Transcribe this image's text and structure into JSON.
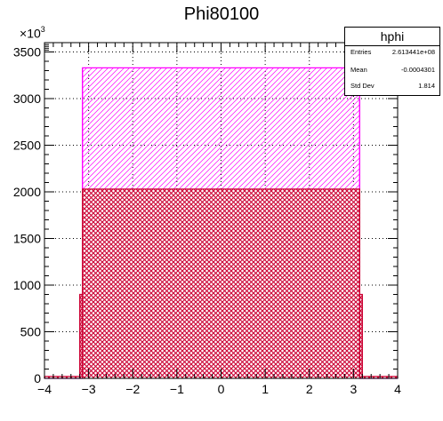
{
  "chart_data": {
    "type": "bar",
    "title": "Phi80100",
    "xlabel": "",
    "ylabel": "",
    "xlim": [
      -4,
      4
    ],
    "ylim": [
      0,
      3600
    ],
    "y_exponent_label": "10",
    "y_exponent_power": "3",
    "x_ticks": [
      -4,
      -3,
      -2,
      -1,
      0,
      1,
      2,
      3,
      4
    ],
    "x_tick_labels": [
      "−4",
      "−3",
      "−2",
      "−1",
      "0",
      "1",
      "2",
      "3",
      "4"
    ],
    "y_ticks": [
      0,
      500,
      1000,
      1500,
      2000,
      2500,
      3000,
      3500
    ],
    "y_tick_labels": [
      "0",
      "500",
      "1000",
      "1500",
      "2000",
      "2500",
      "3000",
      "3500"
    ],
    "grid": true,
    "series": [
      {
        "name": "outer_histogram",
        "color": "#ff00ff",
        "fill": "diagonal-hatch",
        "bins": [
          {
            "x0": -4.0,
            "x1": -3.14,
            "value": 0
          },
          {
            "x0": -3.14,
            "x1": 3.14,
            "value": 3330
          },
          {
            "x0": 3.14,
            "x1": 4.0,
            "value": 0
          }
        ]
      },
      {
        "name": "inner_histogram",
        "color": "#cc0033",
        "fill": "cross-hatch",
        "bins": [
          {
            "x0": -4.0,
            "x1": -3.2,
            "value": 20
          },
          {
            "x0": -3.2,
            "x1": -3.14,
            "value": 900
          },
          {
            "x0": -3.14,
            "x1": 3.14,
            "value": 2030
          },
          {
            "x0": 3.14,
            "x1": 3.2,
            "value": 900
          },
          {
            "x0": 3.2,
            "x1": 4.0,
            "value": 20
          }
        ]
      }
    ]
  },
  "stats": {
    "name": "hphi",
    "entries_label": "Entries",
    "entries_value": "2.613441e+08",
    "mean_label": "Mean",
    "mean_value": "-0.0004301",
    "stddev_label": "Std Dev",
    "stddev_value": "1.814"
  },
  "colors": {
    "outer": "#ff00ff",
    "inner": "#cc0033",
    "grid": "#000000"
  }
}
